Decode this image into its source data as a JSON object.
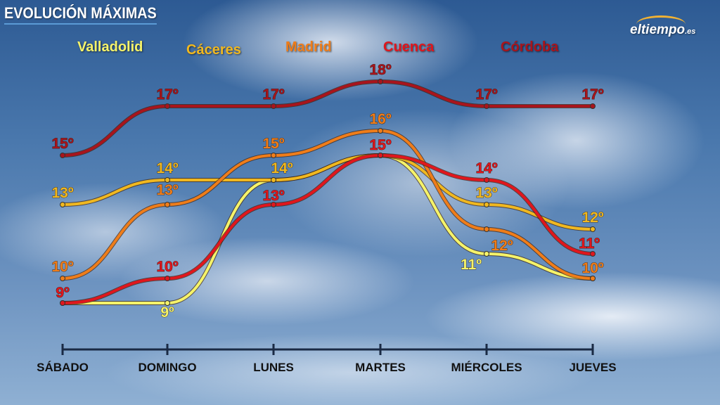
{
  "header": {
    "title": "EVOLUCIÓN MÁXIMAS",
    "logo": "eltiempo",
    "logo_suffix": ".es"
  },
  "chart_data": {
    "type": "line",
    "title": "EVOLUCIÓN MÁXIMAS",
    "categories": [
      "SÁBADO",
      "DOMINGO",
      "LUNES",
      "MARTES",
      "MIÉRCOLES",
      "JUEVES"
    ],
    "ylim": [
      9,
      18
    ],
    "unit": "º",
    "series": [
      {
        "name": "Valladolid",
        "color": "#f5f36a",
        "values": [
          9,
          9,
          14,
          15,
          11,
          10
        ],
        "labels": [
          null,
          "9º",
          null,
          null,
          "11º",
          null
        ]
      },
      {
        "name": "Cáceres",
        "color": "#f0b820",
        "values": [
          13,
          14,
          14,
          15,
          13,
          12
        ],
        "labels": [
          "13º",
          "14º",
          "14º",
          null,
          "13º",
          "12º"
        ]
      },
      {
        "name": "Madrid",
        "color": "#ef7d1a",
        "values": [
          10,
          13,
          15,
          16,
          12,
          10
        ],
        "labels": [
          "10º",
          "13º",
          "15º",
          "16º",
          "12º",
          "10º"
        ]
      },
      {
        "name": "Cuenca",
        "color": "#e0161d",
        "values": [
          9,
          10,
          13,
          15,
          14,
          11
        ],
        "labels": [
          "9º",
          "10º",
          "13º",
          "15º",
          "14º",
          "11º"
        ]
      },
      {
        "name": "Córdoba",
        "color": "#a8141c",
        "values": [
          15,
          17,
          17,
          18,
          17,
          17
        ],
        "labels": [
          "15º",
          "17º",
          "17º",
          "18º",
          "17º",
          "17º"
        ]
      }
    ]
  }
}
